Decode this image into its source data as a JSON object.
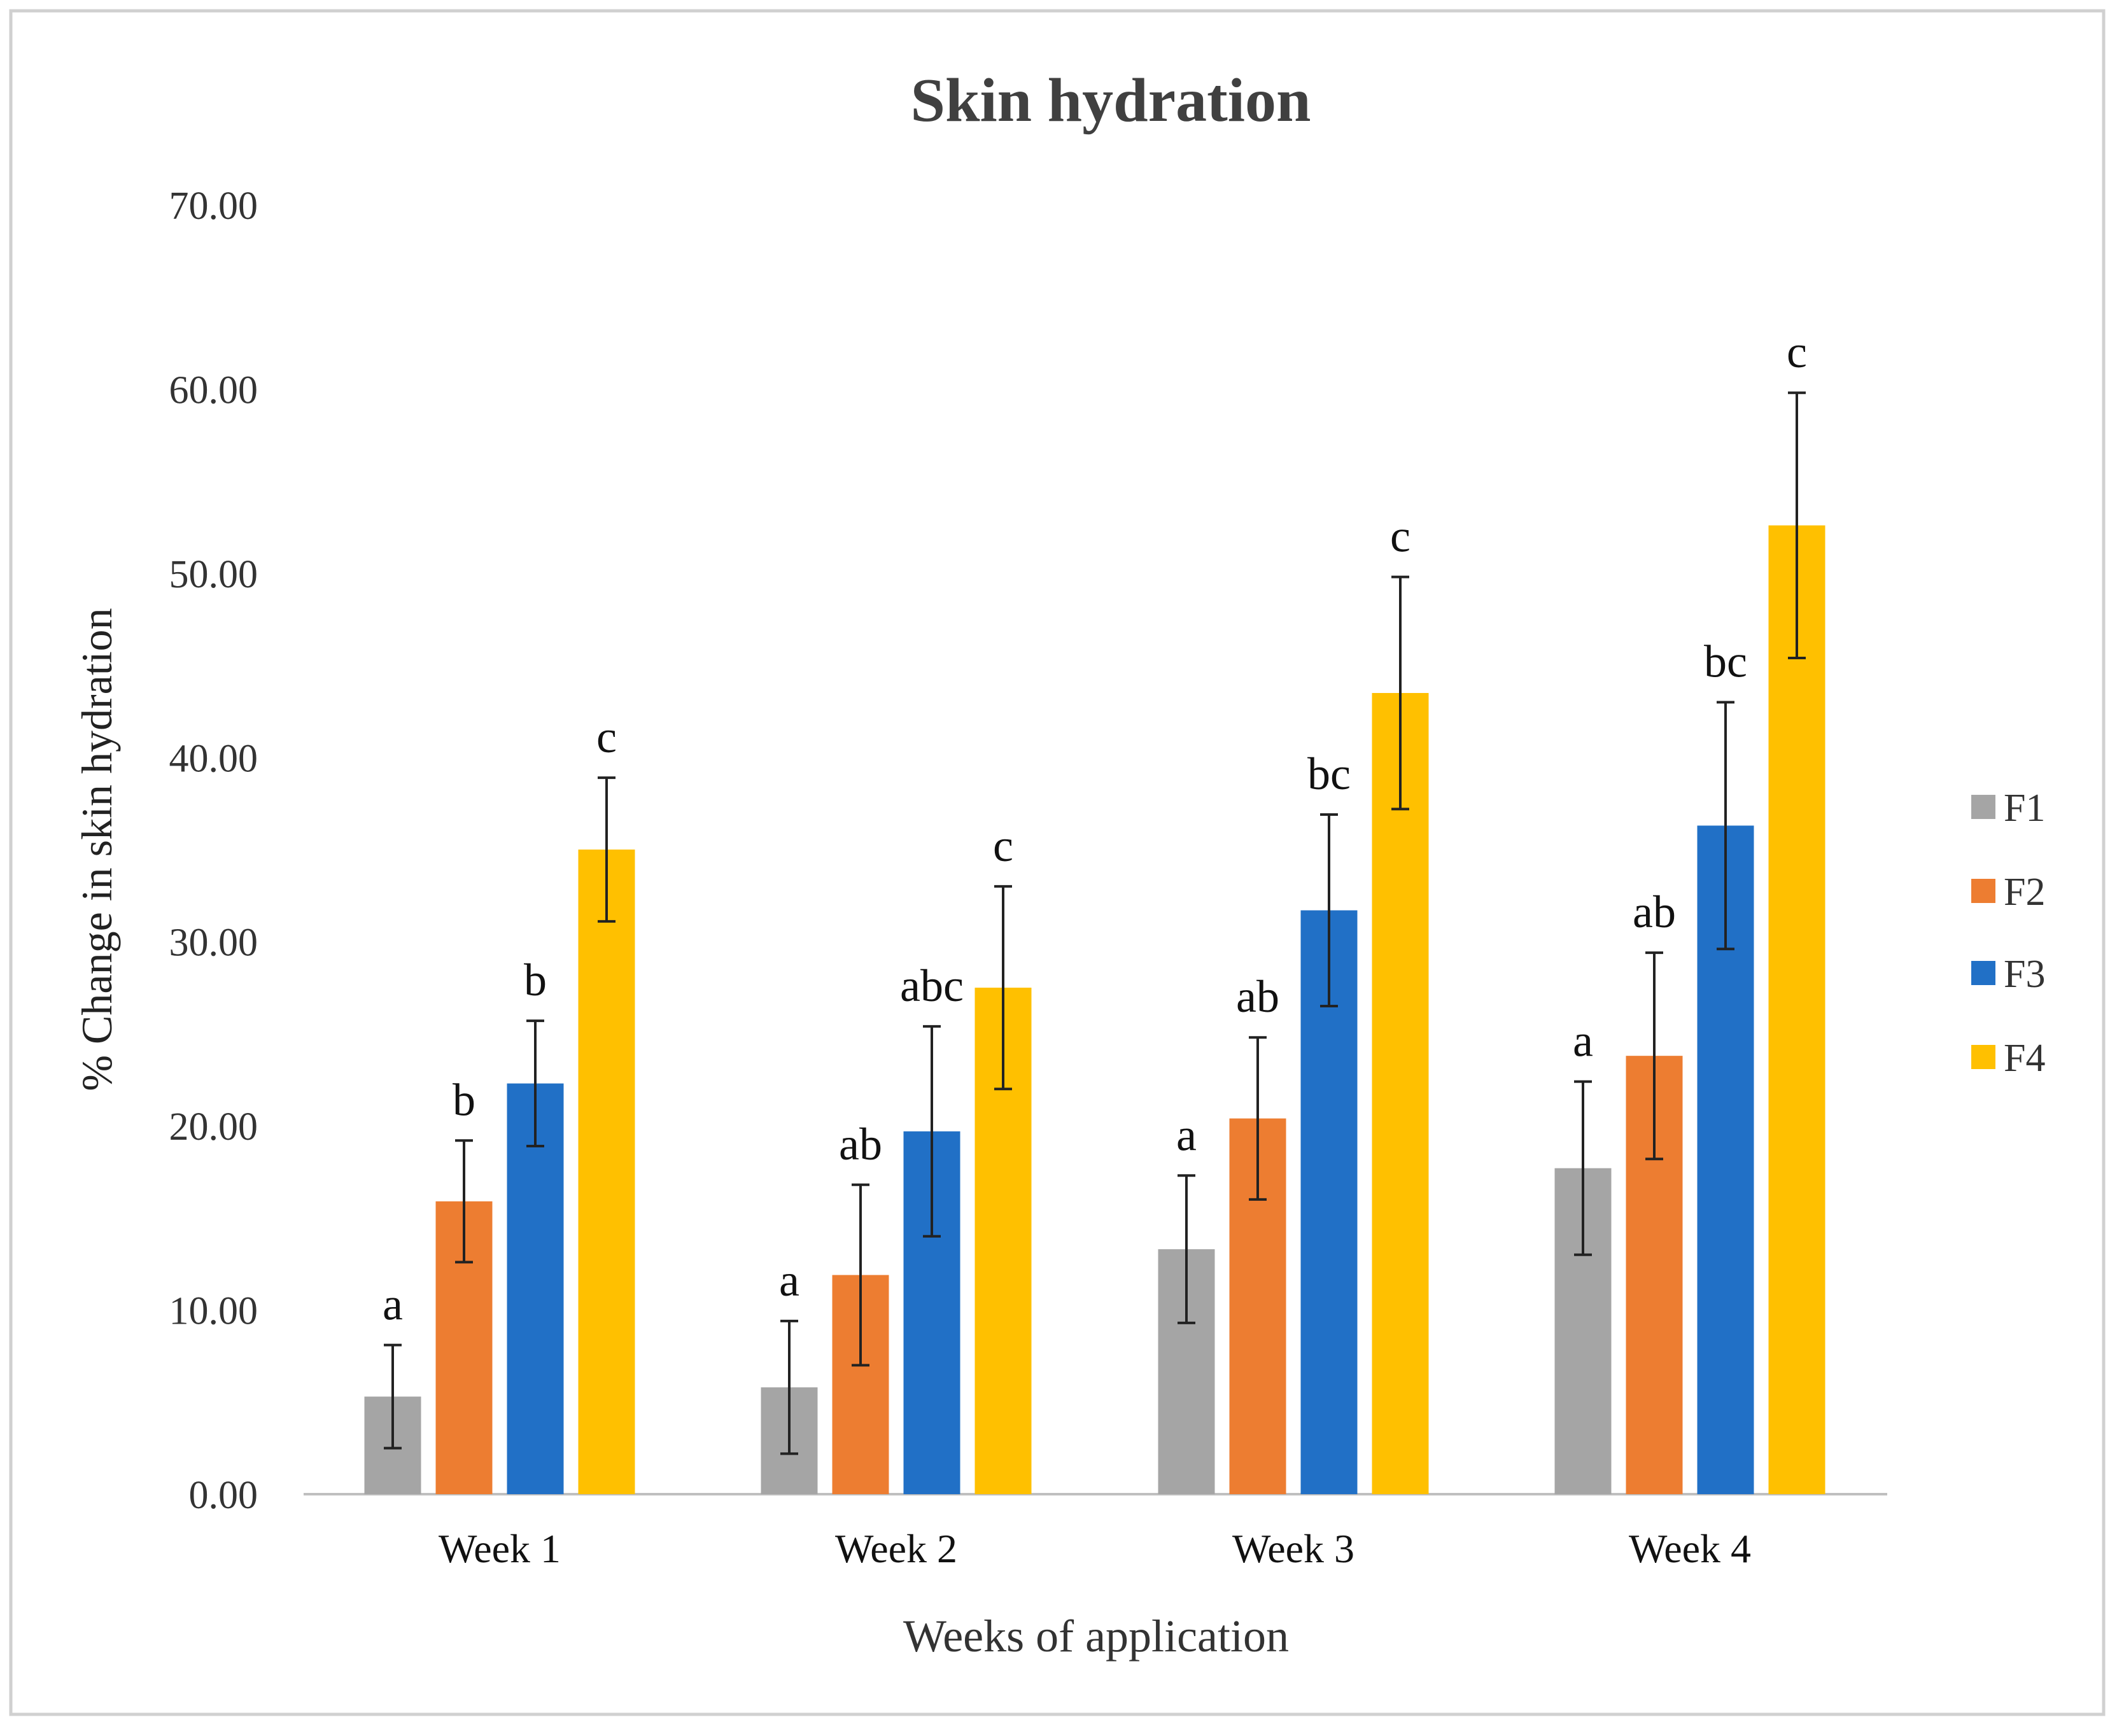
{
  "chart_data": {
    "type": "bar",
    "title": "Skin hydration",
    "xlabel": "Weeks of application",
    "ylabel": "% Change in skin hydration",
    "ylim": [
      0,
      70
    ],
    "yticks": [
      "0.00",
      "10.00",
      "20.00",
      "30.00",
      "40.00",
      "50.00",
      "60.00",
      "70.00"
    ],
    "ytick_values": [
      0,
      10,
      20,
      30,
      40,
      50,
      60,
      70
    ],
    "grid": false,
    "legend_position": "right",
    "categories": [
      "Week 1",
      "Week 2",
      "Week 3",
      "Week 4"
    ],
    "series": [
      {
        "name": "F1",
        "color": "#a5a5a5",
        "values": [
          5.3,
          5.8,
          13.3,
          17.7
        ],
        "errors": [
          2.8,
          3.6,
          4.0,
          4.7
        ],
        "letters": [
          "a",
          "a",
          "a",
          "a"
        ]
      },
      {
        "name": "F2",
        "color": "#ed7d31",
        "values": [
          15.9,
          11.9,
          20.4,
          23.8
        ],
        "errors": [
          3.3,
          4.9,
          4.4,
          5.6
        ],
        "letters": [
          "b",
          "ab",
          "ab",
          "ab"
        ]
      },
      {
        "name": "F3",
        "color": "#2170c6",
        "values": [
          22.3,
          19.7,
          31.7,
          36.3
        ],
        "errors": [
          3.4,
          5.7,
          5.2,
          6.7
        ],
        "letters": [
          "b",
          "abc",
          "bc",
          "bc"
        ]
      },
      {
        "name": "F4",
        "color": "#ffc000",
        "values": [
          35.0,
          27.5,
          43.5,
          52.6
        ],
        "errors": [
          3.9,
          5.5,
          6.3,
          7.2
        ],
        "letters": [
          "c",
          "c",
          "c",
          "c"
        ]
      }
    ]
  }
}
